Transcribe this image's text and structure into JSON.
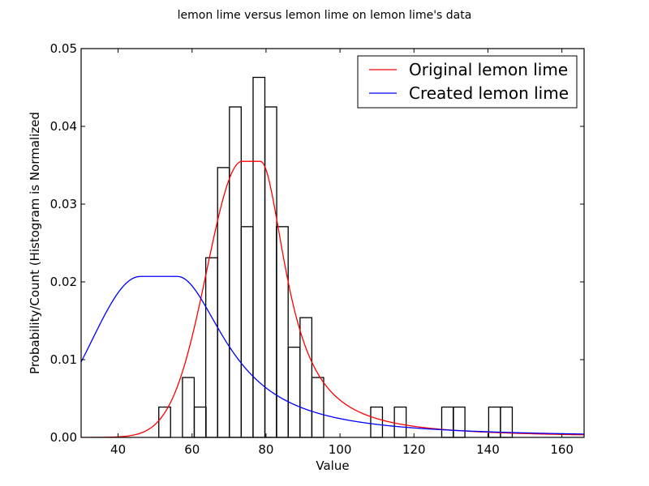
{
  "chart_data": {
    "type": "histogram+line",
    "title": "lemon lime versus lemon lime on lemon lime's data",
    "xlabel": "Value",
    "ylabel": "Probability/Count (Histogram is Normalized",
    "xlim": [
      30,
      166
    ],
    "ylim": [
      0,
      0.05
    ],
    "xticks": [
      40,
      60,
      80,
      100,
      120,
      140,
      160
    ],
    "yticks": [
      "0.00",
      "0.01",
      "0.02",
      "0.03",
      "0.04",
      "0.05"
    ],
    "histogram": {
      "bin_width": 3.18,
      "bins": [
        {
          "x0": 51.0,
          "height": 0.0039
        },
        {
          "x0": 57.4,
          "height": 0.0077
        },
        {
          "x0": 60.6,
          "height": 0.0039
        },
        {
          "x0": 63.7,
          "height": 0.0231
        },
        {
          "x0": 66.9,
          "height": 0.0347
        },
        {
          "x0": 70.1,
          "height": 0.0425
        },
        {
          "x0": 73.3,
          "height": 0.0271
        },
        {
          "x0": 76.5,
          "height": 0.0463
        },
        {
          "x0": 79.7,
          "height": 0.0425
        },
        {
          "x0": 82.8,
          "height": 0.0271
        },
        {
          "x0": 86.0,
          "height": 0.0116
        },
        {
          "x0": 89.2,
          "height": 0.0154
        },
        {
          "x0": 92.4,
          "height": 0.0077
        },
        {
          "x0": 108.3,
          "height": 0.0039
        },
        {
          "x0": 114.7,
          "height": 0.0039
        },
        {
          "x0": 127.5,
          "height": 0.0039
        },
        {
          "x0": 130.6,
          "height": 0.0039
        },
        {
          "x0": 140.2,
          "height": 0.0039
        },
        {
          "x0": 143.4,
          "height": 0.0039
        }
      ]
    },
    "series": [
      {
        "name": "Original lemon lime",
        "color": "#ff0000",
        "shape": {
          "mode": 76,
          "plateau_low": 73.5,
          "plateau_high": 78.5,
          "peak": 0.0355,
          "left_scale": 9.5,
          "right_scale": 8.5
        }
      },
      {
        "name": "Created lemon lime",
        "color": "#0000ff",
        "shape": {
          "mode": 51,
          "plateau_low": 46,
          "plateau_high": 56,
          "peak": 0.0207,
          "left_scale": 13,
          "right_scale": 16
        }
      }
    ],
    "legend": {
      "location": "upper-right"
    }
  }
}
